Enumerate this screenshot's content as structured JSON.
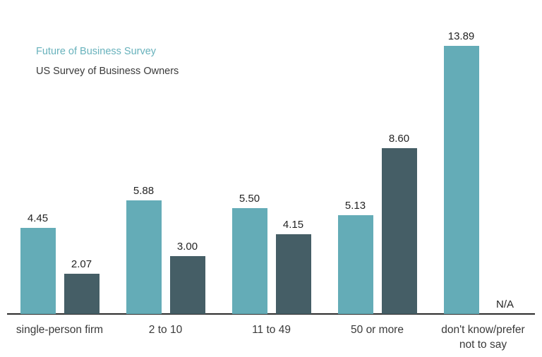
{
  "legend": {
    "series1_label": "Future of Business Survey",
    "series2_label": "US Survey of Business Owners"
  },
  "colors": {
    "series1_bar": "#64acb7",
    "series2_bar": "#455e66",
    "legend_series1_text": "#68b2bc",
    "legend_series2_text": "#3a3a3a",
    "axis_line": "#2b2b2b",
    "category_text": "#3a3a3a",
    "value_text": "#242424",
    "background": "#ffffff"
  },
  "chart_data": {
    "type": "bar",
    "title": "",
    "xlabel": "",
    "ylabel": "",
    "grid": false,
    "legend_position": "top-left",
    "ylim": [
      0,
      13.89
    ],
    "categories": [
      "single-person firm",
      "2 to 10",
      "11 to 49",
      "50 or more",
      "don't know/prefer not to say"
    ],
    "series": [
      {
        "name": "Future of Business Survey",
        "color": "#64acb7",
        "values": [
          4.45,
          5.88,
          5.5,
          5.13,
          13.89
        ],
        "labels": [
          "4.45",
          "5.88",
          "5.50",
          "5.13",
          "13.89"
        ]
      },
      {
        "name": "US Survey of Business Owners",
        "color": "#455e66",
        "values": [
          2.07,
          3.0,
          4.15,
          8.6,
          null
        ],
        "labels": [
          "2.07",
          "3.00",
          "4.15",
          "8.60",
          "N/A"
        ]
      }
    ],
    "missing_value_label": "N/A"
  }
}
